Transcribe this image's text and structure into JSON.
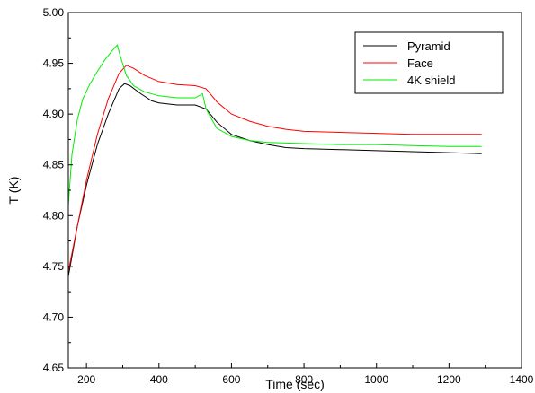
{
  "chart_data": {
    "type": "line",
    "title": "",
    "xlabel": "Time (sec)",
    "ylabel": "T (K)",
    "xlim": [
      150,
      1400
    ],
    "ylim": [
      4.65,
      5.0
    ],
    "xticks": [
      200,
      400,
      600,
      800,
      1000,
      1200,
      1400
    ],
    "xtick_labels": [
      "200",
      "400",
      "600",
      "800",
      "1000",
      "1200",
      "1400"
    ],
    "yticks": [
      4.65,
      4.7,
      4.75,
      4.8,
      4.85,
      4.9,
      4.95,
      5.0
    ],
    "ytick_labels": [
      "4.65",
      "4.70",
      "4.75",
      "4.80",
      "4.85",
      "4.90",
      "4.95",
      "5.00"
    ],
    "grid": false,
    "legend_position": "top-right",
    "series": [
      {
        "name": "Pyramid",
        "color": "#000000",
        "x": [
          150,
          175,
          200,
          230,
          260,
          290,
          305,
          320,
          350,
          380,
          400,
          450,
          500,
          530,
          560,
          600,
          650,
          700,
          750,
          800,
          900,
          1000,
          1100,
          1200,
          1290
        ],
        "y": [
          4.74,
          4.79,
          4.83,
          4.87,
          4.9,
          4.925,
          4.93,
          4.928,
          4.92,
          4.913,
          4.911,
          4.909,
          4.909,
          4.905,
          4.892,
          4.88,
          4.874,
          4.87,
          4.867,
          4.866,
          4.865,
          4.864,
          4.863,
          4.862,
          4.861
        ]
      },
      {
        "name": "Face",
        "color": "#ff0000",
        "x": [
          150,
          175,
          200,
          230,
          260,
          290,
          310,
          330,
          360,
          400,
          450,
          500,
          530,
          560,
          600,
          650,
          700,
          750,
          800,
          900,
          1000,
          1100,
          1200,
          1290
        ],
        "y": [
          4.745,
          4.79,
          4.835,
          4.88,
          4.915,
          4.94,
          4.948,
          4.945,
          4.938,
          4.932,
          4.929,
          4.928,
          4.925,
          4.912,
          4.9,
          4.893,
          4.888,
          4.885,
          4.883,
          4.882,
          4.881,
          4.88,
          4.88,
          4.88
        ]
      },
      {
        "name": "4K shield",
        "color": "#00ee00",
        "x": [
          150,
          160,
          175,
          190,
          210,
          230,
          250,
          270,
          285,
          295,
          310,
          330,
          360,
          400,
          450,
          500,
          520,
          530,
          545,
          560,
          600,
          650,
          700,
          800,
          900,
          1000,
          1100,
          1200,
          1290
        ],
        "y": [
          4.81,
          4.86,
          4.895,
          4.915,
          4.93,
          4.942,
          4.953,
          4.962,
          4.968,
          4.955,
          4.938,
          4.928,
          4.922,
          4.918,
          4.916,
          4.916,
          4.92,
          4.905,
          4.895,
          4.886,
          4.878,
          4.874,
          4.872,
          4.871,
          4.87,
          4.87,
          4.869,
          4.868,
          4.868
        ]
      }
    ]
  }
}
